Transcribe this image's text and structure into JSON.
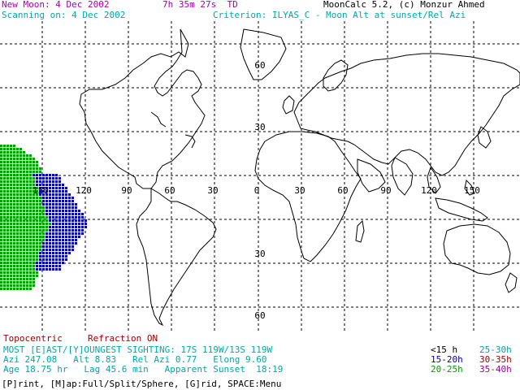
{
  "header": {
    "new_moon": "New Moon: 4 Dec 2002",
    "time": "7h 35m 27s  TD",
    "app": "MoonCalc 5.2, (c) Monzur Ahmed",
    "scanning": "Scanning on: 4 Dec 2002",
    "criterion": "Criterion: ILYAS_C - Moon Alt at sunset/Rel Azi"
  },
  "map": {
    "longitude_labels": [
      "150",
      "120",
      "90",
      "60",
      "30",
      "0",
      "30",
      "60",
      "90",
      "120",
      "150"
    ],
    "latitude_labels": [
      "60",
      "30",
      "30",
      "60"
    ]
  },
  "footer": {
    "topocentric": "Topocentric",
    "refraction": "Refraction ON",
    "sighting": "MOST [E]AST/[Y]OUNGEST SIGHTING: 17S 119W/13S 119W",
    "azi_line": "Azi 247.08   Alt 8.83   Rel Azi 0.77   Elong 9.60",
    "age_line": "Age 18.75 hr   Lag 45.6 min   Apparent Sunset  18:19",
    "menu": "[P]rint, [M]ap:Full/Split/Sphere, [G]rid, SPACE:Menu"
  },
  "legend": [
    {
      "label": "<15 h",
      "color": "#000000"
    },
    {
      "label": "25-30h",
      "color": "#00a0a0"
    },
    {
      "label": "15-20h",
      "color": "#0000a8"
    },
    {
      "label": "30-35h",
      "color": "#a00000"
    },
    {
      "label": "20-25h",
      "color": "#00a000"
    },
    {
      "label": "35-40h",
      "color": "#a000a0"
    }
  ],
  "colors": {
    "magenta": "#a800a8",
    "cyan": "#00a8a8",
    "zone_green": "#00a000",
    "zone_blue": "#0000a8",
    "grid": "#000000"
  }
}
